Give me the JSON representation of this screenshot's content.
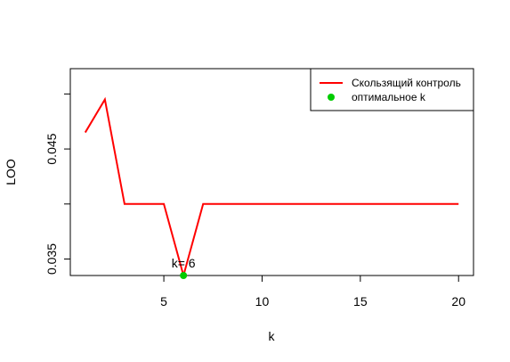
{
  "chart_data": {
    "type": "line",
    "title": "",
    "xlabel": "k",
    "ylabel": "LOO",
    "xlim": [
      0.24,
      20.76
    ],
    "ylim": [
      0.0335,
      0.0523
    ],
    "x_ticks": [
      5,
      10,
      15,
      20
    ],
    "y_ticks": [
      0.035,
      0.04,
      0.045,
      0.05
    ],
    "y_tick_labels_shown": [
      "0.035",
      "0.045"
    ],
    "grid": false,
    "legend_position": "top-right",
    "series": [
      {
        "name": "Скользящий контроль",
        "color": "#ff0000",
        "x": [
          1,
          2,
          3,
          4,
          5,
          6,
          7,
          8,
          9,
          10,
          11,
          12,
          13,
          14,
          15,
          16,
          17,
          18,
          19,
          20
        ],
        "y": [
          0.0465,
          0.0495,
          0.04,
          0.04,
          0.04,
          0.0335,
          0.04,
          0.04,
          0.04,
          0.04,
          0.04,
          0.04,
          0.04,
          0.04,
          0.04,
          0.04,
          0.04,
          0.04,
          0.04,
          0.04
        ]
      }
    ],
    "highlight": {
      "name": "оптимальное k",
      "color": "#00cc00",
      "x": 6,
      "y": 0.0335,
      "label": "k= 6"
    }
  }
}
